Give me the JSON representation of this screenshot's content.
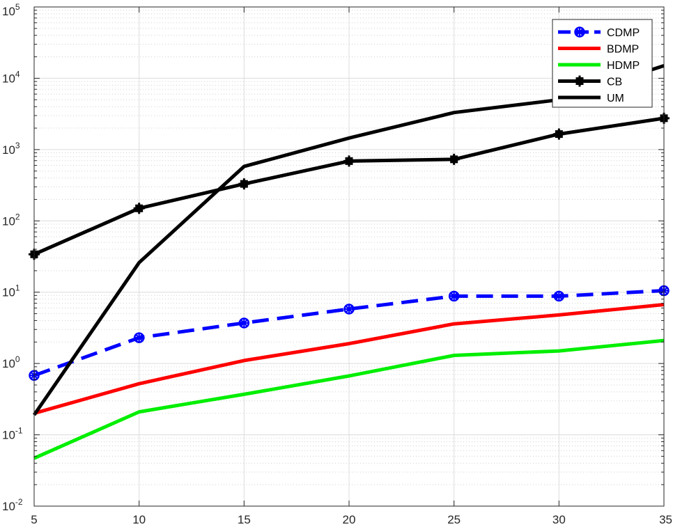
{
  "chart_data": {
    "type": "line",
    "title": "",
    "xlabel": "",
    "ylabel": "",
    "x": [
      5,
      10,
      15,
      20,
      25,
      30,
      35
    ],
    "xlim": [
      5,
      35
    ],
    "ylim": [
      0.01,
      100000
    ],
    "yscale": "log",
    "grid": true,
    "minor_grid": true,
    "legend_position": "top-right",
    "x_tick_labels": [
      "5",
      "10",
      "15",
      "20",
      "25",
      "30",
      "35"
    ],
    "y_tick_labels": [
      {
        "base": "10",
        "exp": "-2"
      },
      {
        "base": "10",
        "exp": "-1"
      },
      {
        "base": "10",
        "exp": "0"
      },
      {
        "base": "10",
        "exp": "1"
      },
      {
        "base": "10",
        "exp": "2"
      },
      {
        "base": "10",
        "exp": "3"
      },
      {
        "base": "10",
        "exp": "4"
      },
      {
        "base": "10",
        "exp": "5"
      }
    ],
    "series": [
      {
        "name": "CDMP",
        "color": "#0000ff",
        "style": "dashed",
        "marker": "circle-star",
        "values": [
          0.68,
          2.3,
          3.7,
          5.8,
          8.8,
          8.8,
          10.5
        ]
      },
      {
        "name": "BDMP",
        "color": "#ff0000",
        "style": "solid",
        "marker": "none",
        "values": [
          0.2,
          0.52,
          1.1,
          1.9,
          3.6,
          4.8,
          6.7
        ]
      },
      {
        "name": "HDMP",
        "color": "#00ee00",
        "style": "solid",
        "marker": "none",
        "values": [
          0.047,
          0.21,
          0.37,
          0.67,
          1.3,
          1.5,
          2.1
        ]
      },
      {
        "name": "CB",
        "color": "#000000",
        "style": "solid",
        "marker": "square-plus",
        "values": [
          34,
          150,
          330,
          690,
          730,
          1650,
          2750
        ]
      },
      {
        "name": "UM",
        "color": "#000000",
        "style": "solid",
        "marker": "none",
        "values": [
          0.19,
          26,
          580,
          1450,
          3300,
          5000,
          15000
        ]
      }
    ]
  }
}
